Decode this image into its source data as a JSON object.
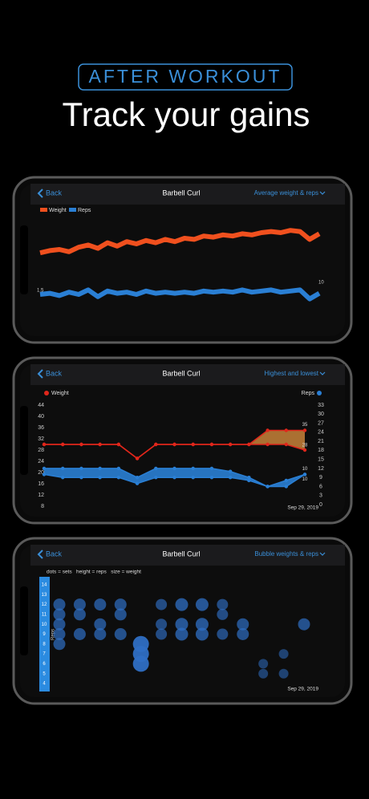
{
  "header": {
    "badge": "AFTER WORKOUT",
    "title": "Track your gains"
  },
  "screens": [
    {
      "back": "Back",
      "title": "Barbell Curl",
      "menu": "Average weight & reps"
    },
    {
      "back": "Back",
      "title": "Barbell Curl",
      "menu": "Highest and lowest"
    },
    {
      "back": "Back",
      "title": "Barbell Curl",
      "menu": "Bubble weights & reps"
    }
  ],
  "chart_data": [
    {
      "type": "line",
      "ylim": [
        0,
        100
      ],
      "series": [
        {
          "name": "Weight",
          "color": "#f0501e",
          "values": [
            57,
            59,
            60,
            58,
            62,
            64,
            61,
            66,
            63,
            67,
            65,
            68,
            66,
            69,
            67,
            70,
            69,
            72,
            71,
            73,
            72,
            74,
            73,
            75,
            76,
            75,
            77,
            76,
            69,
            74
          ]
        },
        {
          "name": "Reps",
          "color": "#2a7fd4",
          "values": [
            20,
            21,
            19,
            22,
            20,
            24,
            18,
            23,
            21,
            22,
            20,
            23,
            21,
            22,
            21,
            22,
            21,
            23,
            22,
            23,
            22,
            24,
            22,
            23,
            24,
            22,
            23,
            24,
            16,
            21
          ]
        }
      ],
      "annotations": [
        "1.5",
        "10"
      ]
    },
    {
      "type": "range",
      "ylim": [
        8,
        44
      ],
      "yticks": [
        44,
        40,
        36,
        32,
        28,
        24,
        20,
        16,
        12,
        8
      ],
      "y2lim": [
        0,
        33
      ],
      "y2ticks": [
        33,
        30,
        27,
        24,
        21,
        18,
        15,
        12,
        9,
        6,
        3,
        0
      ],
      "series": [
        {
          "name": "Weight",
          "color": "#e0261b",
          "fill": "#c8823a",
          "high": [
            30,
            30,
            30,
            30,
            30,
            25,
            30,
            30,
            30,
            30,
            30,
            30,
            35,
            35,
            35
          ],
          "low": [
            30,
            30,
            30,
            30,
            30,
            25,
            30,
            30,
            30,
            30,
            30,
            30,
            30,
            30,
            28
          ]
        },
        {
          "name": "Reps",
          "color": "#2a7fd4",
          "axis": "y2",
          "high": [
            12,
            12,
            12,
            12,
            12,
            9,
            12,
            12,
            12,
            12,
            11,
            9,
            6,
            8,
            10
          ],
          "low": [
            10,
            9,
            9,
            9,
            9,
            7,
            9,
            9,
            9,
            9,
            9,
            8,
            6,
            6,
            10
          ]
        }
      ],
      "date": "Sep 29, 2019"
    },
    {
      "type": "bubble",
      "note": "dots = sets   height = reps   size = weight",
      "y_label": "Reps",
      "xlim": [
        1,
        13
      ],
      "ylim": [
        4,
        14
      ],
      "yticks": [
        14,
        13,
        12,
        11,
        10,
        9,
        8,
        7,
        6,
        5,
        4
      ],
      "color": "#2f6fc4",
      "x": [
        1,
        1,
        1,
        1,
        1,
        2,
        2,
        2,
        3,
        3,
        3,
        4,
        4,
        4,
        5,
        5,
        5,
        6,
        6,
        6,
        7,
        7,
        7,
        8,
        8,
        8,
        9,
        9,
        9,
        10,
        10,
        11,
        11,
        12,
        12,
        13
      ],
      "y": [
        12,
        11,
        10,
        9,
        8,
        12,
        11,
        9,
        12,
        10,
        9,
        12,
        11,
        9,
        8,
        7,
        6,
        12,
        10,
        9,
        12,
        10,
        9,
        12,
        10,
        9,
        12,
        11,
        9,
        10,
        9,
        6,
        5,
        7,
        5,
        10
      ],
      "size": [
        30,
        30,
        30,
        30,
        30,
        30,
        30,
        30,
        30,
        30,
        30,
        30,
        30,
        30,
        40,
        40,
        40,
        28,
        28,
        28,
        32,
        32,
        32,
        32,
        32,
        32,
        28,
        28,
        28,
        30,
        30,
        24,
        24,
        24,
        24,
        30
      ],
      "date": "Sep 29, 2019"
    }
  ]
}
